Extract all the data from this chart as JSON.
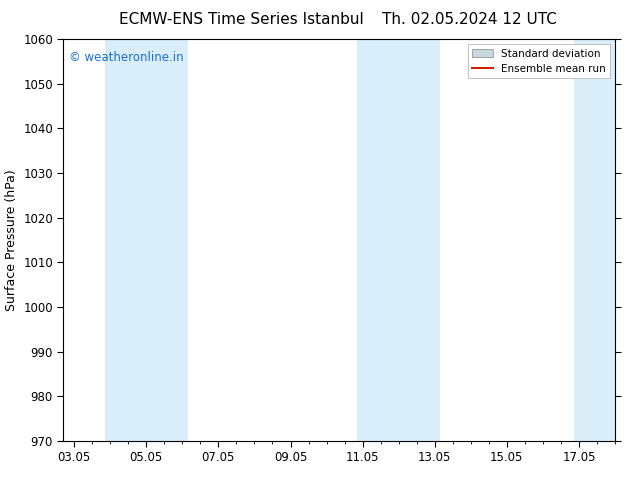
{
  "title_left": "ECMW-ENS Time Series Istanbul",
  "title_right": "Th. 02.05.2024 12 UTC",
  "ylabel": "Surface Pressure (hPa)",
  "ylim": [
    970,
    1060
  ],
  "yticks": [
    970,
    980,
    990,
    1000,
    1010,
    1020,
    1030,
    1040,
    1050,
    1060
  ],
  "xtick_labels": [
    "03.05",
    "05.05",
    "07.05",
    "09.05",
    "11.05",
    "13.05",
    "15.05",
    "17.05"
  ],
  "xtick_positions": [
    0,
    2,
    4,
    6,
    8,
    10,
    12,
    14
  ],
  "xlim": [
    -0.3,
    15.0
  ],
  "shade_regions": [
    {
      "x_start": 0.9,
      "x_end": 2.1,
      "color": "#daeef9"
    },
    {
      "x_start": 2.9,
      "x_end": 3.1,
      "color": "#daeef9"
    },
    {
      "x_start": 7.9,
      "x_end": 9.1,
      "color": "#daeef9"
    },
    {
      "x_start": 13.9,
      "x_end": 15.0,
      "color": "#daeef9"
    }
  ],
  "shade_regions2": [
    {
      "x_start": 0.85,
      "x_end": 3.15,
      "color": "#daeef9"
    },
    {
      "x_start": 7.85,
      "x_end": 10.15,
      "color": "#daeef9"
    },
    {
      "x_start": 13.85,
      "x_end": 15.05,
      "color": "#daeef9"
    }
  ],
  "watermark_text": "© weatheronline.in",
  "watermark_color": "#1a6fcc",
  "background_color": "#ffffff",
  "legend_entries": [
    "Standard deviation",
    "Ensemble mean run"
  ],
  "legend_patch_color": "#c8d8e0",
  "legend_line_color": "#cc2200",
  "title_fontsize": 11,
  "ylabel_fontsize": 9,
  "tick_fontsize": 8.5,
  "watermark_fontsize": 8.5
}
